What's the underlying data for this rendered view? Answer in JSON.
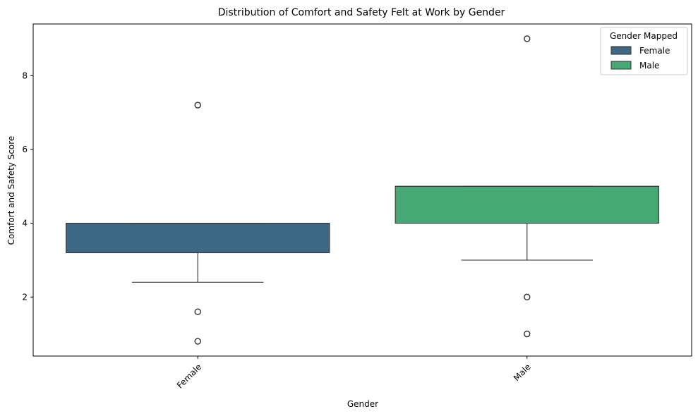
{
  "chart_data": {
    "type": "box",
    "title": "Distribution of Comfort and Safety Felt at Work by Gender",
    "xlabel": "Gender",
    "ylabel": "Comfort and Safety Score",
    "categories": [
      "Female",
      "Male"
    ],
    "ylim": [
      0.4,
      9.4
    ],
    "yticks": [
      2,
      4,
      6,
      8
    ],
    "xtick_rotation_deg": 45,
    "grid": false,
    "legend": {
      "title": "Gender Mapped",
      "placement": "top-right",
      "entries": [
        {
          "label": "Female",
          "color": "#3e6783"
        },
        {
          "label": "Male",
          "color": "#45a875"
        }
      ]
    },
    "series": [
      {
        "category": "Female",
        "color": "#3e6783",
        "whisker_low": 2.4,
        "q1": 3.2,
        "median": 4.0,
        "q3": 4.0,
        "whisker_high": 4.0,
        "outliers": [
          7.2,
          1.6,
          0.8
        ]
      },
      {
        "category": "Male",
        "color": "#45a875",
        "whisker_low": 3.0,
        "q1": 4.0,
        "median": 5.0,
        "q3": 5.0,
        "whisker_high": 5.0,
        "outliers": [
          9.0,
          2.0,
          1.0
        ]
      }
    ]
  }
}
